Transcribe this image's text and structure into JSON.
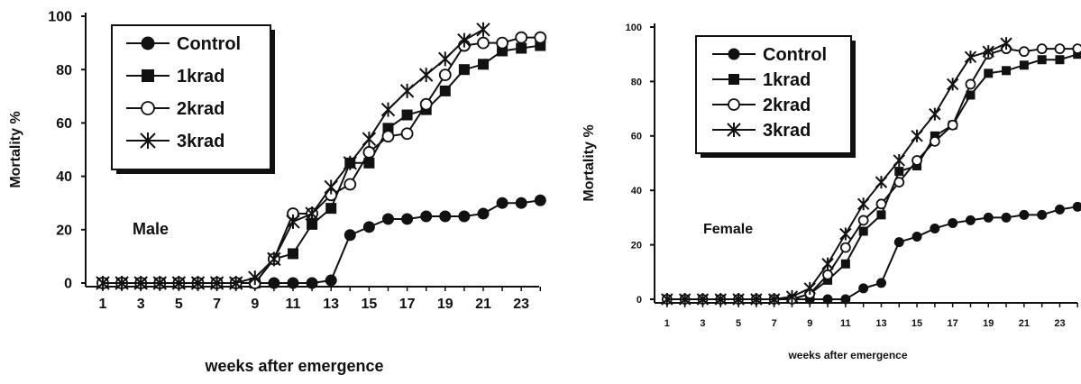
{
  "chart_data": [
    {
      "type": "line",
      "annotation": "Male",
      "xlabel": "weeks after emergence",
      "ylabel": "Mortality %",
      "xlim": [
        0,
        25
      ],
      "ylim": [
        0,
        100
      ],
      "xticks": [
        "1",
        "3",
        "5",
        "7",
        "9",
        "11",
        "13",
        "15",
        "17",
        "19",
        "21",
        "23"
      ],
      "yticks": [
        "0",
        "20",
        "40",
        "60",
        "80",
        "100"
      ],
      "legend_position": "top-left",
      "series": [
        {
          "name": "Control",
          "marker": "filled-circle",
          "x": [
            1,
            2,
            3,
            4,
            5,
            6,
            7,
            8,
            9,
            10,
            11,
            12,
            13,
            14,
            15,
            16,
            17,
            18,
            19,
            20,
            21,
            22,
            23,
            24
          ],
          "y": [
            0,
            0,
            0,
            0,
            0,
            0,
            0,
            0,
            0,
            0,
            0,
            0,
            1,
            18,
            21,
            24,
            24,
            25,
            25,
            25,
            26,
            30,
            30,
            31
          ]
        },
        {
          "name": "1krad",
          "marker": "filled-square",
          "x": [
            1,
            2,
            3,
            4,
            5,
            6,
            7,
            8,
            9,
            10,
            11,
            12,
            13,
            14,
            15,
            16,
            17,
            18,
            19,
            20,
            21,
            22,
            23,
            24
          ],
          "y": [
            0,
            0,
            0,
            0,
            0,
            0,
            0,
            0,
            0,
            9,
            11,
            22,
            28,
            45,
            45,
            58,
            63,
            65,
            72,
            80,
            82,
            87,
            88,
            89
          ]
        },
        {
          "name": "2krad",
          "marker": "open-circle",
          "x": [
            1,
            2,
            3,
            4,
            5,
            6,
            7,
            8,
            9,
            10,
            11,
            12,
            13,
            14,
            15,
            16,
            17,
            18,
            19,
            20,
            21,
            22,
            23,
            24
          ],
          "y": [
            0,
            0,
            0,
            0,
            0,
            0,
            0,
            0,
            0,
            9,
            26,
            26,
            33,
            37,
            49,
            55,
            56,
            67,
            78,
            89,
            90,
            90,
            92,
            92
          ]
        },
        {
          "name": "3krad",
          "marker": "asterisk",
          "x": [
            1,
            2,
            3,
            4,
            5,
            6,
            7,
            8,
            9,
            10,
            11,
            12,
            13,
            14,
            15,
            16,
            17,
            18,
            19,
            20,
            21
          ],
          "y": [
            0,
            0,
            0,
            0,
            0,
            0,
            0,
            0,
            2,
            9,
            23,
            26,
            36,
            45,
            54,
            65,
            72,
            78,
            84,
            91,
            95
          ]
        }
      ]
    },
    {
      "type": "line",
      "annotation": "Female",
      "xlabel": "weeks after emergence",
      "ylabel": "Mortality %",
      "xlim": [
        0,
        24
      ],
      "ylim": [
        0,
        100
      ],
      "xticks": [
        "1",
        "3",
        "5",
        "7",
        "9",
        "11",
        "13",
        "15",
        "17",
        "19",
        "21",
        "23"
      ],
      "yticks": [
        "0",
        "20",
        "40",
        "60",
        "80",
        "100"
      ],
      "legend_position": "top-left",
      "series": [
        {
          "name": "Control",
          "marker": "filled-circle",
          "x": [
            1,
            2,
            3,
            4,
            5,
            6,
            7,
            8,
            9,
            10,
            11,
            12,
            13,
            14,
            15,
            16,
            17,
            18,
            19,
            20,
            21,
            22,
            23,
            24
          ],
          "y": [
            0,
            0,
            0,
            0,
            0,
            0,
            0,
            0,
            0,
            0,
            0,
            4,
            6,
            21,
            23,
            26,
            28,
            29,
            30,
            30,
            31,
            31,
            33,
            34
          ]
        },
        {
          "name": "1krad",
          "marker": "filled-square",
          "x": [
            1,
            2,
            3,
            4,
            5,
            6,
            7,
            8,
            9,
            10,
            11,
            12,
            13,
            14,
            15,
            16,
            17,
            18,
            19,
            20,
            21,
            22,
            23,
            24
          ],
          "y": [
            0,
            0,
            0,
            0,
            0,
            0,
            0,
            0,
            2,
            7,
            13,
            25,
            31,
            47,
            49,
            60,
            64,
            75,
            83,
            84,
            86,
            88,
            88,
            90
          ]
        },
        {
          "name": "2krad",
          "marker": "open-circle",
          "x": [
            1,
            2,
            3,
            4,
            5,
            6,
            7,
            8,
            9,
            10,
            11,
            12,
            13,
            14,
            15,
            16,
            17,
            18,
            19,
            20,
            21,
            22,
            23,
            24
          ],
          "y": [
            0,
            0,
            0,
            0,
            0,
            0,
            0,
            0,
            2,
            9,
            19,
            29,
            35,
            43,
            51,
            58,
            64,
            79,
            90,
            92,
            91,
            92,
            92,
            92
          ]
        },
        {
          "name": "3krad",
          "marker": "asterisk",
          "x": [
            1,
            2,
            3,
            4,
            5,
            6,
            7,
            8,
            9,
            10,
            11,
            12,
            13,
            14,
            15,
            16,
            17,
            18,
            19,
            20
          ],
          "y": [
            0,
            0,
            0,
            0,
            0,
            0,
            0,
            1,
            4,
            13,
            24,
            35,
            43,
            51,
            60,
            68,
            79,
            89,
            91,
            94
          ]
        }
      ]
    }
  ]
}
